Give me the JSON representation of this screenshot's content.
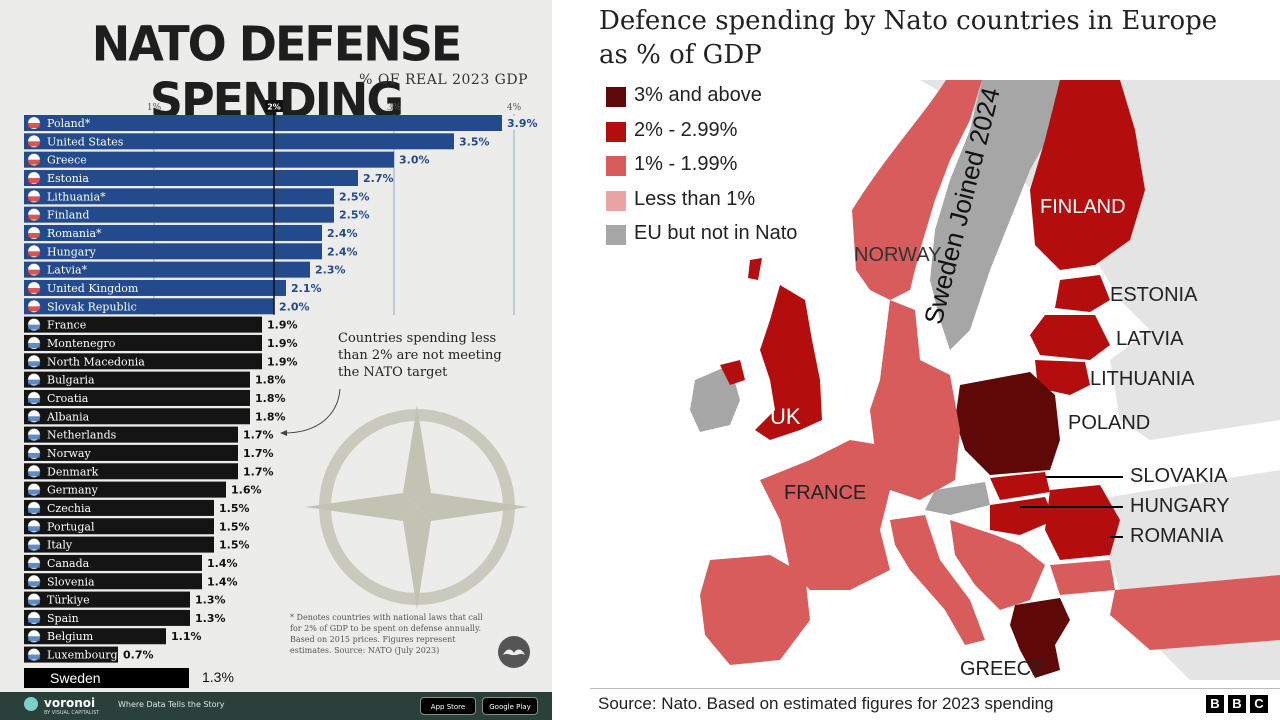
{
  "left_panel": {
    "title": "NATO DEFENSE SPENDING",
    "subtitle": "% OF REAL 2023 GDP",
    "note": "Countries spending less than 2% are not meeting the NATO target",
    "footnote": "* Denotes countries with national laws that call for 2% of GDP to be spent on defense annually. Based on 2015 prices. Figures represent estimates. Source: NATO (July 2023)",
    "sweden_label": "Sweden",
    "sweden_value": "1.3%",
    "brand": "voronoi",
    "brand_sub": "BY VISUAL CAPITALIST",
    "tagline": "Where Data Tells the Story",
    "app_store": "App Store",
    "google_play": "Google Play"
  },
  "chart_data": {
    "type": "bar",
    "orientation": "horizontal",
    "x_ticks": [
      "1%",
      "2%",
      "3%",
      "4%"
    ],
    "target": 2,
    "xlim": [
      0,
      4
    ],
    "categories": [
      "Poland*",
      "United States",
      "Greece",
      "Estonia",
      "Lithuania*",
      "Finland",
      "Romania*",
      "Hungary",
      "Latvia*",
      "United Kingdom",
      "Slovak Republic",
      "France",
      "Montenegro",
      "North Macedonia",
      "Bulgaria",
      "Croatia",
      "Albania",
      "Netherlands",
      "Norway",
      "Denmark",
      "Germany",
      "Czechia",
      "Portugal",
      "Italy",
      "Canada",
      "Slovenia",
      "Türkiye",
      "Spain",
      "Belgium",
      "Luxembourg"
    ],
    "values": [
      3.9,
      3.5,
      3.0,
      2.7,
      2.5,
      2.5,
      2.4,
      2.4,
      2.3,
      2.1,
      2.0,
      1.9,
      1.9,
      1.9,
      1.8,
      1.8,
      1.8,
      1.7,
      1.7,
      1.7,
      1.6,
      1.5,
      1.5,
      1.5,
      1.4,
      1.4,
      1.3,
      1.3,
      1.1,
      0.7
    ],
    "value_labels": [
      "3.9%",
      "3.5%",
      "3.0%",
      "2.7%",
      "2.5%",
      "2.5%",
      "2.4%",
      "2.4%",
      "2.3%",
      "2.1%",
      "2.0%",
      "1.9%",
      "1.9%",
      "1.9%",
      "1.8%",
      "1.8%",
      "1.8%",
      "1.7%",
      "1.7%",
      "1.7%",
      "1.6%",
      "1.5%",
      "1.5%",
      "1.5%",
      "1.4%",
      "1.4%",
      "1.3%",
      "1.3%",
      "1.1%",
      "0.7%"
    ],
    "colors": {
      "meeting_target": "#234a8c",
      "below_target": "#141414"
    }
  },
  "right_panel": {
    "title": "Defence spending by Nato countries in Europe as % of GDP",
    "legend": [
      {
        "label": "3% and above",
        "color": "#5e0808"
      },
      {
        "label": "2% - 2.99%",
        "color": "#b40d0d"
      },
      {
        "label": "1% - 1.99%",
        "color": "#d95c5c"
      },
      {
        "label": "Less than 1%",
        "color": "#eba4a4"
      },
      {
        "label": "EU but not in Nato",
        "color": "#a6a6a6"
      }
    ],
    "map_labels": {
      "finland": "FINLAND",
      "norway": "NORWAY",
      "sweden_note": "Sweden Joined 2024",
      "estonia": "ESTONIA",
      "latvia": "LATVIA",
      "lithuania": "LITHUANIA",
      "uk": "UK",
      "poland": "POLAND",
      "slovakia": "SLOVAKIA",
      "hungary": "HUNGARY",
      "romania": "ROMANIA",
      "france": "FRANCE",
      "greece": "GREECE"
    },
    "source": "Source: Nato. Based on estimated figures for 2023 spending",
    "bbc": [
      "B",
      "B",
      "C"
    ]
  }
}
